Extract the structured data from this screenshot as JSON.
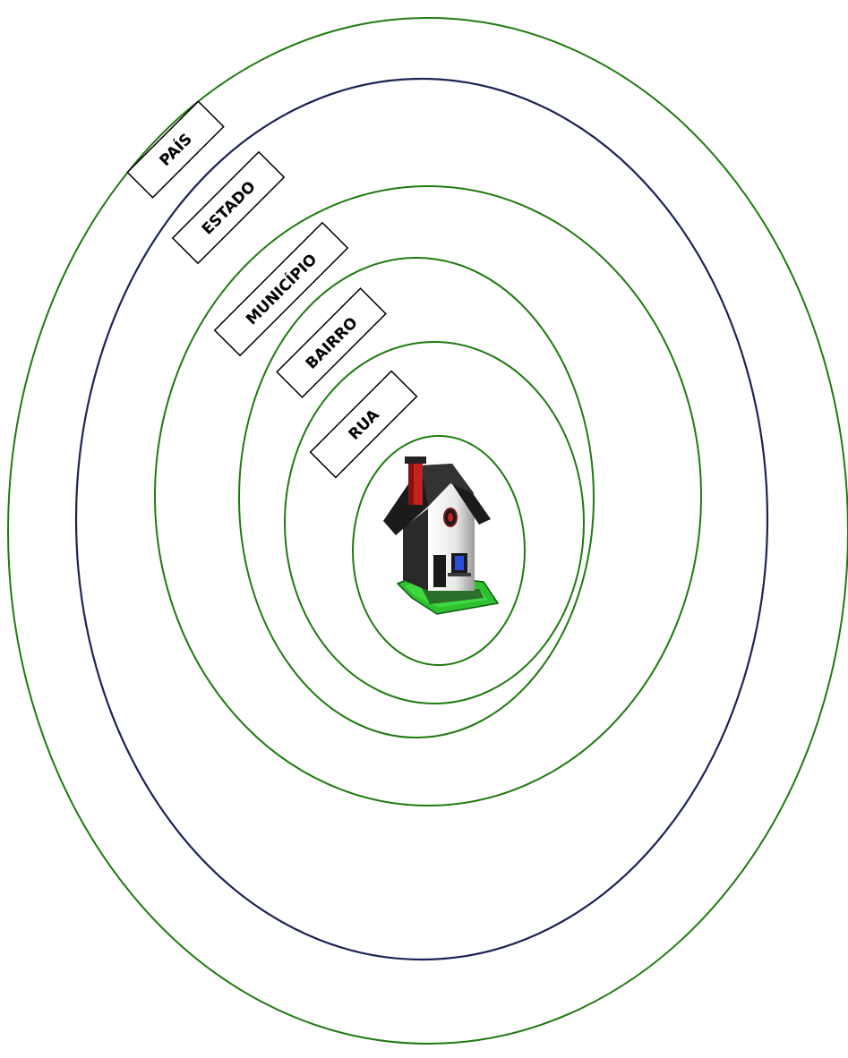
{
  "diagram": {
    "rings": [
      {
        "label": "PAÍS",
        "color": "#1f7a10"
      },
      {
        "label": "ESTADO",
        "color": "#1c2456"
      },
      {
        "label": "MUNICÍPIO",
        "color": "#1f7a10"
      },
      {
        "label": "BAIRRO",
        "color": "#1f7a10"
      },
      {
        "label": "RUA",
        "color": "#1f7a10"
      },
      {
        "label": "",
        "color": "#1f7a10"
      }
    ],
    "center_icon": "house-icon"
  }
}
